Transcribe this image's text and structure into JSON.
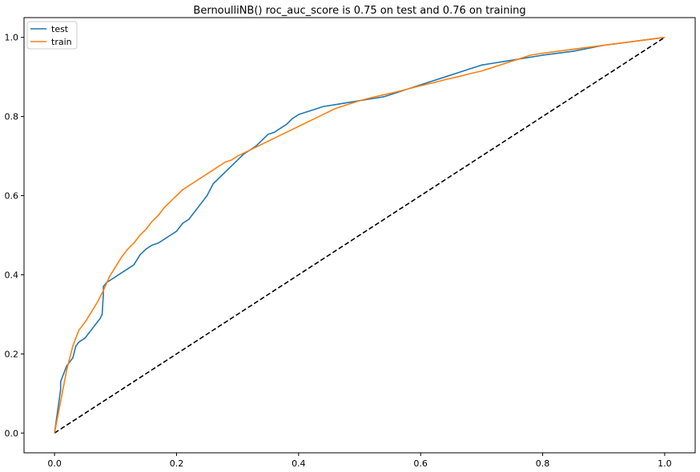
{
  "chart_data": {
    "type": "line",
    "title": "BernoulliNB() roc_auc_score is 0.75 on test and 0.76 on training",
    "xlabel": "",
    "ylabel": "",
    "xlim": [
      -0.05,
      1.05
    ],
    "ylim": [
      -0.05,
      1.05
    ],
    "x_ticks": [
      0.0,
      0.2,
      0.4,
      0.6,
      0.8,
      1.0
    ],
    "x_tick_labels": [
      "0.0",
      "0.2",
      "0.4",
      "0.6",
      "0.8",
      "1.0"
    ],
    "y_ticks": [
      0.0,
      0.2,
      0.4,
      0.6,
      0.8,
      1.0
    ],
    "y_tick_labels": [
      "0.0",
      "0.2",
      "0.4",
      "0.6",
      "0.8",
      "1.0"
    ],
    "grid": false,
    "legend_position": "top-left",
    "series": [
      {
        "name": "test",
        "color": "#1f77b4",
        "style": "solid",
        "x": [
          0.0,
          0.01,
          0.01,
          0.02,
          0.03,
          0.035,
          0.04,
          0.045,
          0.05,
          0.055,
          0.06,
          0.065,
          0.07,
          0.075,
          0.078,
          0.08,
          0.08,
          0.085,
          0.09,
          0.1,
          0.11,
          0.12,
          0.13,
          0.14,
          0.15,
          0.155,
          0.16,
          0.17,
          0.18,
          0.19,
          0.2,
          0.21,
          0.22,
          0.23,
          0.24,
          0.25,
          0.26,
          0.27,
          0.28,
          0.29,
          0.3,
          0.31,
          0.32,
          0.33,
          0.34,
          0.35,
          0.36,
          0.37,
          0.38,
          0.39,
          0.4,
          0.42,
          0.44,
          0.46,
          0.48,
          0.5,
          0.52,
          0.54,
          0.56,
          0.58,
          0.6,
          0.62,
          0.64,
          0.66,
          0.68,
          0.7,
          0.72,
          0.74,
          0.76,
          0.8,
          0.85,
          0.9,
          0.95,
          1.0
        ],
        "y": [
          0.0,
          0.11,
          0.13,
          0.17,
          0.19,
          0.22,
          0.23,
          0.235,
          0.24,
          0.25,
          0.26,
          0.27,
          0.28,
          0.29,
          0.3,
          0.35,
          0.37,
          0.38,
          0.385,
          0.395,
          0.405,
          0.415,
          0.425,
          0.45,
          0.465,
          0.47,
          0.475,
          0.48,
          0.49,
          0.5,
          0.51,
          0.53,
          0.54,
          0.56,
          0.58,
          0.6,
          0.63,
          0.645,
          0.66,
          0.675,
          0.69,
          0.705,
          0.715,
          0.725,
          0.74,
          0.755,
          0.76,
          0.77,
          0.78,
          0.795,
          0.805,
          0.815,
          0.825,
          0.83,
          0.835,
          0.84,
          0.845,
          0.85,
          0.86,
          0.87,
          0.88,
          0.89,
          0.9,
          0.91,
          0.92,
          0.93,
          0.935,
          0.94,
          0.945,
          0.955,
          0.965,
          0.98,
          0.99,
          1.0
        ]
      },
      {
        "name": "train",
        "color": "#ff7f0e",
        "style": "solid",
        "x": [
          0.0,
          0.005,
          0.01,
          0.015,
          0.02,
          0.025,
          0.03,
          0.035,
          0.04,
          0.05,
          0.06,
          0.07,
          0.08,
          0.09,
          0.1,
          0.11,
          0.12,
          0.13,
          0.14,
          0.15,
          0.16,
          0.17,
          0.18,
          0.19,
          0.2,
          0.21,
          0.22,
          0.23,
          0.24,
          0.25,
          0.26,
          0.27,
          0.28,
          0.29,
          0.3,
          0.32,
          0.34,
          0.36,
          0.38,
          0.4,
          0.42,
          0.44,
          0.46,
          0.48,
          0.5,
          0.52,
          0.54,
          0.56,
          0.58,
          0.6,
          0.62,
          0.64,
          0.66,
          0.68,
          0.7,
          0.72,
          0.74,
          0.76,
          0.78,
          0.8,
          0.84,
          0.88,
          0.92,
          0.96,
          1.0
        ],
        "y": [
          0.0,
          0.04,
          0.08,
          0.12,
          0.16,
          0.19,
          0.22,
          0.24,
          0.26,
          0.28,
          0.305,
          0.33,
          0.36,
          0.395,
          0.42,
          0.445,
          0.465,
          0.48,
          0.5,
          0.515,
          0.535,
          0.55,
          0.57,
          0.585,
          0.6,
          0.615,
          0.625,
          0.635,
          0.645,
          0.655,
          0.665,
          0.675,
          0.685,
          0.69,
          0.7,
          0.715,
          0.73,
          0.745,
          0.76,
          0.775,
          0.79,
          0.805,
          0.82,
          0.83,
          0.84,
          0.848,
          0.855,
          0.862,
          0.87,
          0.878,
          0.885,
          0.893,
          0.9,
          0.908,
          0.915,
          0.925,
          0.935,
          0.945,
          0.955,
          0.96,
          0.968,
          0.976,
          0.984,
          0.992,
          1.0
        ]
      },
      {
        "name": "",
        "color": "#000000",
        "style": "dashed",
        "x": [
          0.0,
          1.0
        ],
        "y": [
          0.0,
          1.0
        ]
      }
    ]
  }
}
